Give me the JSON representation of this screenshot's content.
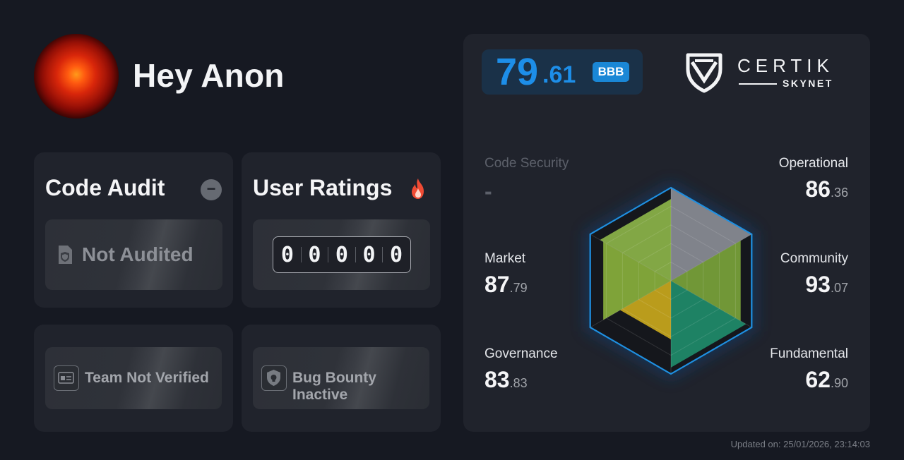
{
  "project": {
    "name": "Hey Anon"
  },
  "code_audit": {
    "title": "Code Audit",
    "status_icon": "minus-circle-icon",
    "status_text": "Not Audited",
    "doc_icon": "shield-document-icon"
  },
  "user_ratings": {
    "title": "User Ratings",
    "fire_icon": "fire-icon",
    "digits": [
      "0",
      "0",
      "0",
      "0",
      "0"
    ]
  },
  "team": {
    "label": "Team Not Verified",
    "icon": "id-card-icon"
  },
  "bug_bounty": {
    "label": "Bug Bounty Inactive",
    "icon": "shield-lock-icon"
  },
  "score": {
    "integer": "79",
    "decimal": ".61",
    "grade": "BBB"
  },
  "brand": {
    "name": "CERTIK",
    "sub": "SKYNET",
    "logo_icon": "certik-shield-icon"
  },
  "categories": {
    "code_security": {
      "label": "Code Security",
      "integer": "-",
      "decimal": ""
    },
    "operational": {
      "label": "Operational",
      "integer": "86",
      "decimal": ".36"
    },
    "community": {
      "label": "Community",
      "integer": "93",
      "decimal": ".07"
    },
    "fundamental": {
      "label": "Fundamental",
      "integer": "62",
      "decimal": ".90"
    },
    "governance": {
      "label": "Governance",
      "integer": "83",
      "decimal": ".83"
    },
    "market": {
      "label": "Market",
      "integer": "87",
      "decimal": ".79"
    }
  },
  "chart_data": {
    "type": "radar",
    "axes": [
      "Code Security",
      "Operational",
      "Community",
      "Fundamental",
      "Governance",
      "Market"
    ],
    "values": [
      null,
      86.36,
      93.07,
      62.9,
      83.83,
      87.79
    ],
    "range": [
      0,
      100
    ],
    "colors": [
      "#8a8d95",
      "#7aa33a",
      "#1f8c6a",
      "#c9a81c",
      "#89b03c",
      "#8cb449"
    ]
  },
  "footer": {
    "updated": "Updated on: 25/01/2026, 23:14:03"
  }
}
